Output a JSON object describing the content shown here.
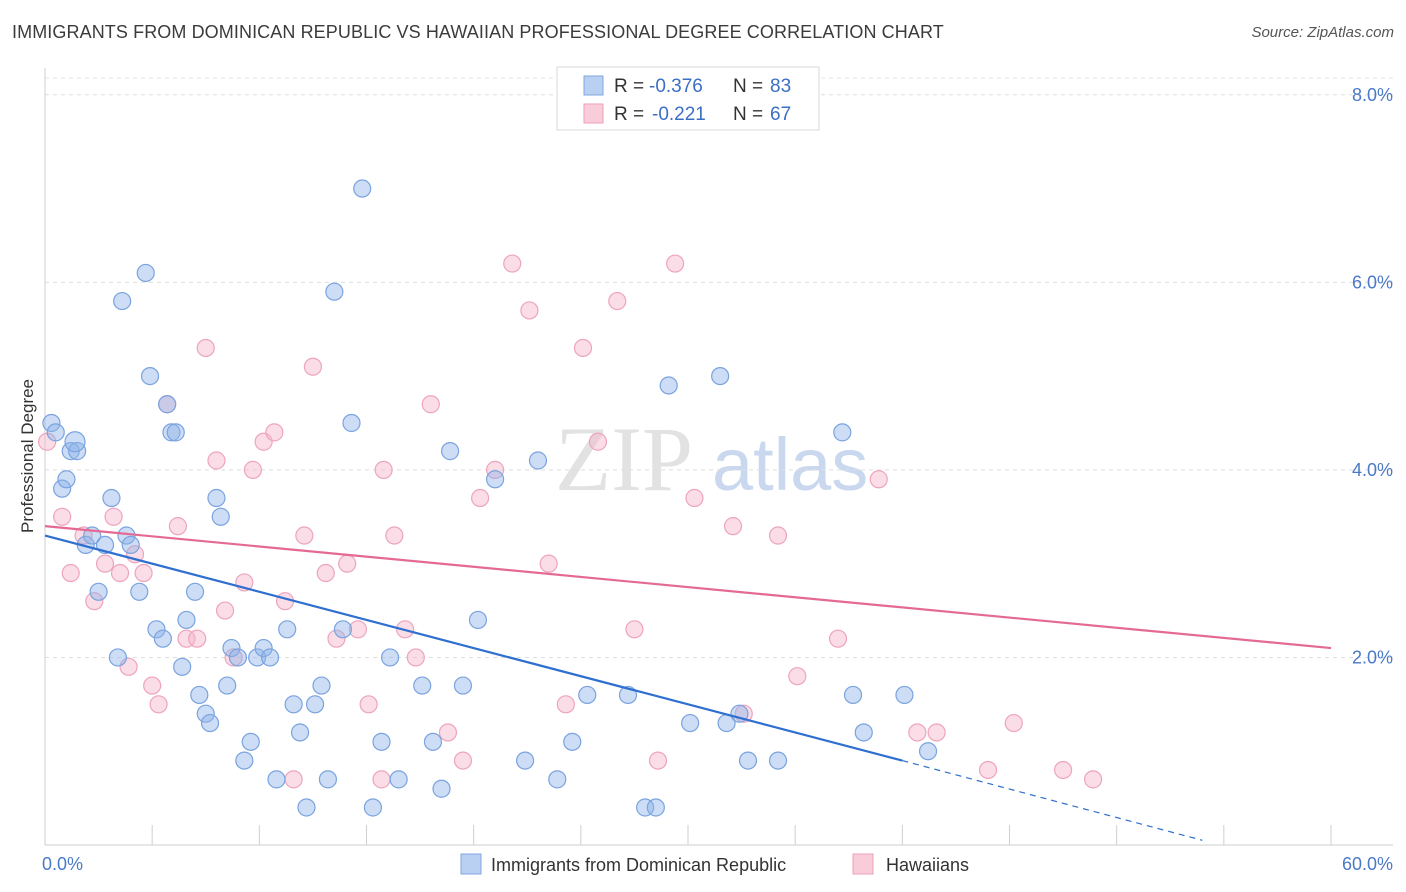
{
  "title": "IMMIGRANTS FROM DOMINICAN REPUBLIC VS HAWAIIAN PROFESSIONAL DEGREE CORRELATION CHART",
  "source": "Source: ZipAtlas.com",
  "watermark": {
    "zip": "ZIP",
    "atlas": "atlas"
  },
  "legend_box": {
    "rows": [
      {
        "r_label": "R = ",
        "r_value": "-0.376",
        "n_label": "N = ",
        "n_value": "83"
      },
      {
        "r_label": "R = ",
        "r_value": "-0.221",
        "n_label": "N = ",
        "n_value": "67"
      }
    ]
  },
  "bottom_legend": [
    "Immigrants from Dominican Republic",
    "Hawaiians"
  ],
  "chart_data": {
    "type": "scatter",
    "title": "IMMIGRANTS FROM DOMINICAN REPUBLIC VS HAWAIIAN PROFESSIONAL DEGREE CORRELATION CHART",
    "xlabel": "",
    "ylabel": "Professional Degree",
    "xlim": [
      0,
      60
    ],
    "ylim": [
      0,
      8.2
    ],
    "x_tick_labels": [
      "0.0%",
      "60.0%"
    ],
    "y_ticks": [
      2,
      4,
      6,
      8
    ],
    "y_tick_labels": [
      "2.0%",
      "4.0%",
      "6.0%",
      "8.0%"
    ],
    "grid": "horizontal dashed",
    "legend_position": "bottom",
    "colors": {
      "blue": "#8fb3e8",
      "blue_line": "#2e6fcf",
      "pink": "#f4b3c8",
      "pink_line": "#e46a93",
      "axis_text": "#4a79c8"
    },
    "series": [
      {
        "name": "Immigrants from Dominican Republic",
        "color": "#8fb3e8",
        "R": -0.376,
        "N": 83,
        "trend": {
          "x0": 0,
          "y0": 3.3,
          "x1": 40,
          "y1": 0.9,
          "dash_to_x": 54,
          "dash_to_y": 0.05
        },
        "points": [
          [
            0.3,
            4.5
          ],
          [
            0.5,
            4.4
          ],
          [
            0.8,
            3.8
          ],
          [
            1.0,
            3.9
          ],
          [
            1.2,
            4.2
          ],
          [
            1.5,
            4.2
          ],
          [
            1.9,
            3.2
          ],
          [
            2.2,
            3.3
          ],
          [
            2.5,
            2.7
          ],
          [
            2.8,
            3.2
          ],
          [
            3.1,
            3.7
          ],
          [
            3.4,
            2.0
          ],
          [
            3.6,
            5.8
          ],
          [
            3.8,
            3.3
          ],
          [
            4.0,
            3.2
          ],
          [
            4.4,
            2.7
          ],
          [
            4.7,
            6.1
          ],
          [
            4.9,
            5.0
          ],
          [
            5.2,
            2.3
          ],
          [
            5.5,
            2.2
          ],
          [
            5.7,
            4.7
          ],
          [
            5.9,
            4.4
          ],
          [
            6.1,
            4.4
          ],
          [
            6.4,
            1.9
          ],
          [
            6.6,
            2.4
          ],
          [
            7.0,
            2.7
          ],
          [
            7.2,
            1.6
          ],
          [
            7.5,
            1.4
          ],
          [
            7.7,
            1.3
          ],
          [
            8.0,
            3.7
          ],
          [
            8.2,
            3.5
          ],
          [
            8.5,
            1.7
          ],
          [
            8.7,
            2.1
          ],
          [
            9.0,
            2.0
          ],
          [
            9.3,
            0.9
          ],
          [
            9.6,
            1.1
          ],
          [
            9.9,
            2.0
          ],
          [
            10.2,
            2.1
          ],
          [
            10.5,
            2.0
          ],
          [
            10.8,
            0.7
          ],
          [
            11.3,
            2.3
          ],
          [
            11.6,
            1.5
          ],
          [
            11.9,
            1.2
          ],
          [
            12.2,
            0.4
          ],
          [
            12.6,
            1.5
          ],
          [
            12.9,
            1.7
          ],
          [
            13.2,
            0.7
          ],
          [
            13.5,
            5.9
          ],
          [
            13.9,
            2.3
          ],
          [
            14.3,
            4.5
          ],
          [
            14.8,
            7.0
          ],
          [
            15.3,
            0.4
          ],
          [
            15.7,
            1.1
          ],
          [
            16.1,
            2.0
          ],
          [
            16.5,
            0.7
          ],
          [
            17.6,
            1.7
          ],
          [
            18.1,
            1.1
          ],
          [
            18.5,
            0.6
          ],
          [
            18.9,
            4.2
          ],
          [
            19.5,
            1.7
          ],
          [
            20.2,
            2.4
          ],
          [
            21.0,
            3.9
          ],
          [
            22.4,
            0.9
          ],
          [
            23.0,
            4.1
          ],
          [
            23.9,
            0.7
          ],
          [
            24.6,
            1.1
          ],
          [
            25.3,
            1.6
          ],
          [
            27.2,
            1.6
          ],
          [
            28.0,
            0.4
          ],
          [
            28.5,
            0.4
          ],
          [
            29.1,
            4.9
          ],
          [
            30.1,
            1.3
          ],
          [
            31.5,
            5.0
          ],
          [
            31.8,
            1.3
          ],
          [
            32.4,
            1.4
          ],
          [
            32.8,
            0.9
          ],
          [
            34.2,
            0.9
          ],
          [
            37.2,
            4.4
          ],
          [
            37.7,
            1.6
          ],
          [
            38.2,
            1.2
          ],
          [
            40.1,
            1.6
          ],
          [
            41.2,
            1.0
          ],
          [
            1.4,
            4.3
          ]
        ]
      },
      {
        "name": "Hawaiians",
        "color": "#f4b3c8",
        "R": -0.221,
        "N": 67,
        "trend": {
          "x0": 0,
          "y0": 3.4,
          "x1": 60,
          "y1": 2.1
        },
        "points": [
          [
            0.1,
            4.3
          ],
          [
            0.8,
            3.5
          ],
          [
            1.2,
            2.9
          ],
          [
            1.8,
            3.3
          ],
          [
            2.3,
            2.6
          ],
          [
            2.8,
            3.0
          ],
          [
            3.2,
            3.5
          ],
          [
            3.5,
            2.9
          ],
          [
            3.9,
            1.9
          ],
          [
            4.2,
            3.1
          ],
          [
            4.6,
            2.9
          ],
          [
            5.0,
            1.7
          ],
          [
            5.3,
            1.5
          ],
          [
            5.7,
            4.7
          ],
          [
            6.2,
            3.4
          ],
          [
            6.6,
            2.2
          ],
          [
            7.1,
            2.2
          ],
          [
            7.5,
            5.3
          ],
          [
            8.0,
            4.1
          ],
          [
            8.4,
            2.5
          ],
          [
            8.8,
            2.0
          ],
          [
            9.3,
            2.8
          ],
          [
            9.7,
            4.0
          ],
          [
            10.2,
            4.3
          ],
          [
            10.7,
            4.4
          ],
          [
            11.2,
            2.6
          ],
          [
            11.6,
            0.7
          ],
          [
            12.1,
            3.3
          ],
          [
            12.5,
            5.1
          ],
          [
            13.1,
            2.9
          ],
          [
            13.6,
            2.2
          ],
          [
            14.1,
            3.0
          ],
          [
            14.6,
            2.3
          ],
          [
            15.1,
            1.5
          ],
          [
            15.8,
            4.0
          ],
          [
            16.3,
            3.3
          ],
          [
            16.8,
            2.3
          ],
          [
            17.3,
            2.0
          ],
          [
            18.0,
            4.7
          ],
          [
            18.8,
            1.2
          ],
          [
            19.5,
            0.9
          ],
          [
            20.3,
            3.7
          ],
          [
            21.0,
            4.0
          ],
          [
            21.8,
            6.2
          ],
          [
            22.6,
            5.7
          ],
          [
            23.5,
            3.0
          ],
          [
            24.3,
            1.5
          ],
          [
            25.1,
            5.3
          ],
          [
            25.8,
            4.3
          ],
          [
            26.7,
            5.8
          ],
          [
            27.5,
            2.3
          ],
          [
            28.6,
            0.9
          ],
          [
            29.4,
            6.2
          ],
          [
            30.3,
            3.7
          ],
          [
            32.1,
            3.4
          ],
          [
            34.2,
            3.3
          ],
          [
            35.1,
            1.8
          ],
          [
            37.0,
            2.2
          ],
          [
            38.9,
            3.9
          ],
          [
            40.7,
            1.2
          ],
          [
            41.6,
            1.2
          ],
          [
            44.0,
            0.8
          ],
          [
            45.2,
            1.3
          ],
          [
            47.5,
            0.8
          ],
          [
            48.9,
            0.7
          ],
          [
            32.6,
            1.4
          ],
          [
            15.7,
            0.7
          ]
        ]
      }
    ]
  }
}
